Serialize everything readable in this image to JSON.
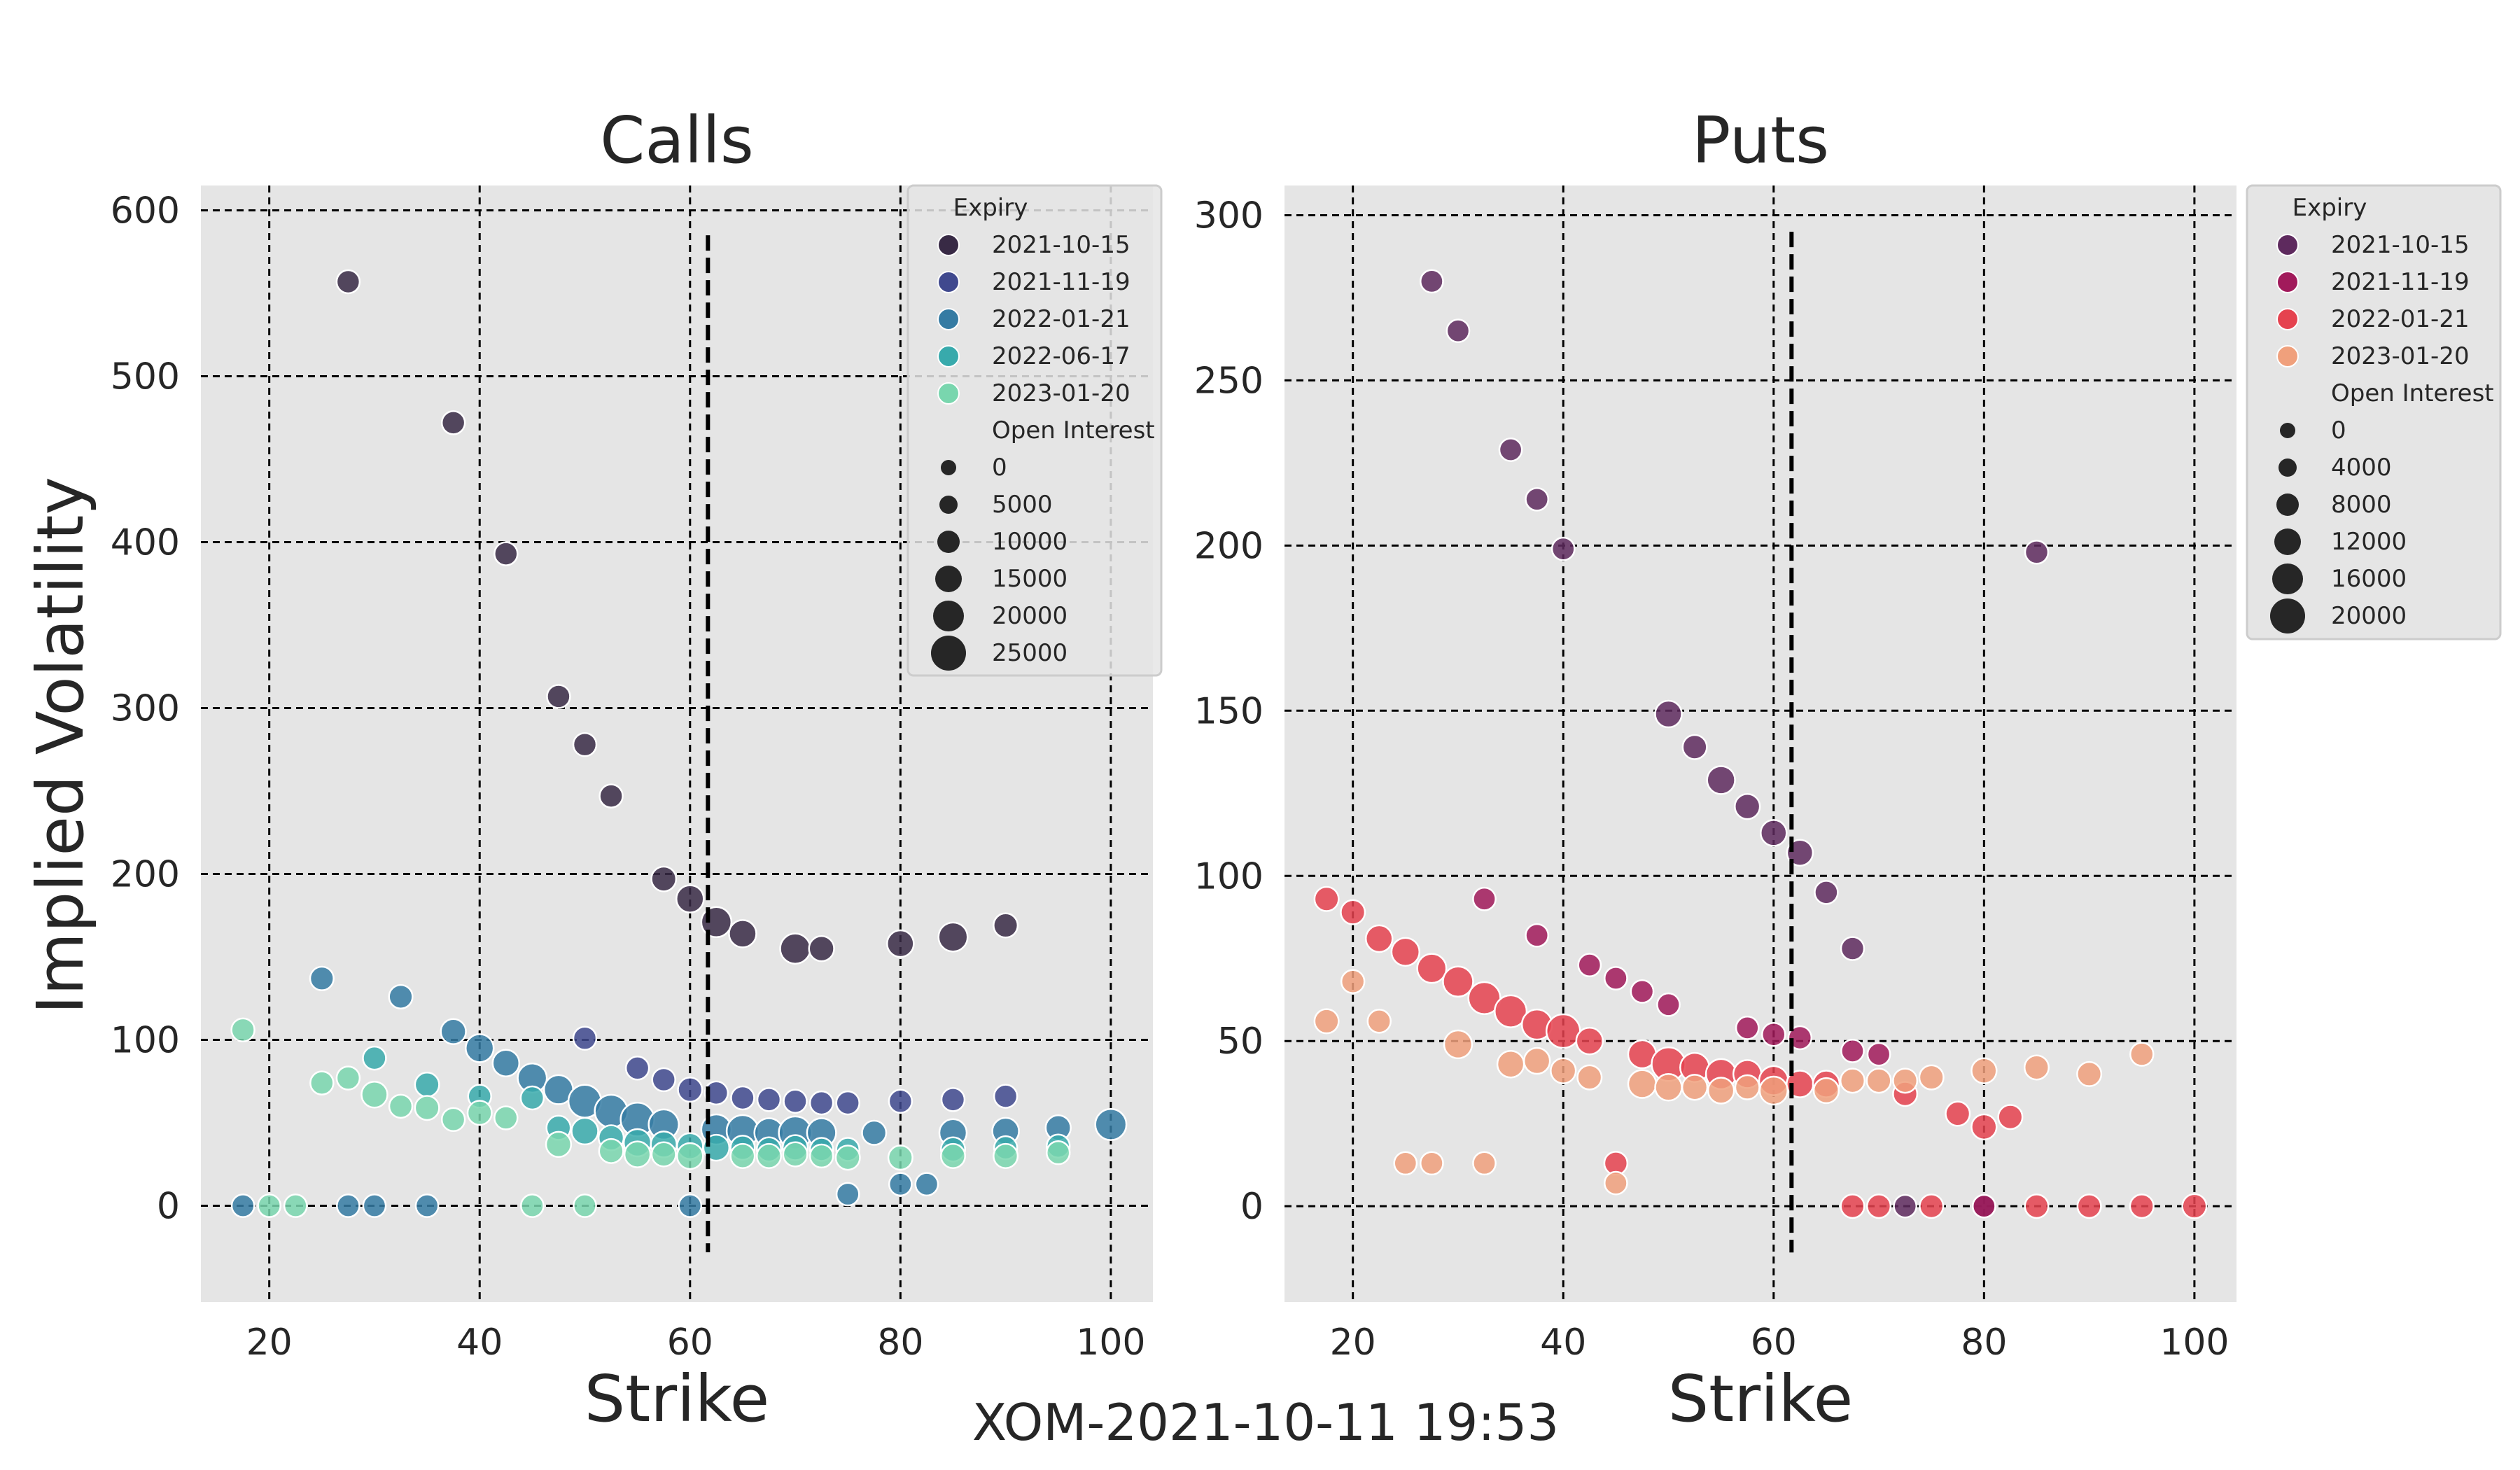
{
  "suptitle": "XOM-2021-10-11 19:53",
  "chart_data": [
    {
      "type": "scatter",
      "title": "Calls",
      "xlabel": "Strike",
      "ylabel": "Implied Volatility",
      "xlim": [
        13.5,
        104
      ],
      "ylim": [
        -58,
        615
      ],
      "xticks": [
        20,
        40,
        60,
        80,
        100
      ],
      "yticks": [
        0,
        100,
        200,
        300,
        400,
        500,
        600
      ],
      "grid": true,
      "legend_position": "upper-right",
      "spot_line": {
        "x": 61.7,
        "y_range": [
          -28,
          585
        ]
      },
      "legend_hue_title": "Expiry",
      "legend_size_title": "Open Interest",
      "size_legend_values": [
        0,
        5000,
        10000,
        15000,
        20000,
        25000
      ],
      "series": [
        {
          "name": "2021-10-15",
          "color": "#382a45",
          "points": [
            [
              27.5,
              557,
              1000
            ],
            [
              37.5,
              472,
              1000
            ],
            [
              42.5,
              393,
              1000
            ],
            [
              47.5,
              307,
              1000
            ],
            [
              50,
              278,
              1000
            ],
            [
              52.5,
              247,
              1000
            ],
            [
              57.5,
              197,
              1800
            ],
            [
              60,
              185,
              3500
            ],
            [
              62.5,
              171,
              6000
            ],
            [
              65,
              164,
              3500
            ],
            [
              70,
              155,
              6000
            ],
            [
              72.5,
              155,
              2000
            ],
            [
              80,
              158,
              3000
            ],
            [
              85,
              162,
              5000
            ],
            [
              90,
              169,
              1500
            ]
          ]
        },
        {
          "name": "2021-11-19",
          "color": "#40498e",
          "points": [
            [
              50,
              101,
              1000
            ],
            [
              55,
              83,
              1000
            ],
            [
              57.5,
              76,
              1000
            ],
            [
              60,
              70,
              1500
            ],
            [
              62.5,
              68,
              1000
            ],
            [
              65,
              65,
              1000
            ],
            [
              67.5,
              64,
              1000
            ],
            [
              70,
              63,
              1000
            ],
            [
              72.5,
              62,
              1000
            ],
            [
              75,
              62,
              1000
            ],
            [
              80,
              63,
              1000
            ],
            [
              85,
              64,
              1000
            ],
            [
              90,
              66,
              1000
            ]
          ]
        },
        {
          "name": "2022-01-21",
          "color": "#357ba3",
          "points": [
            [
              17.5,
              0,
              800
            ],
            [
              25,
              137,
              1200
            ],
            [
              27.5,
              0,
              800
            ],
            [
              30,
              0,
              800
            ],
            [
              32.5,
              126,
              1200
            ],
            [
              35,
              0,
              800
            ],
            [
              37.5,
              105,
              2000
            ],
            [
              40,
              95,
              4000
            ],
            [
              42.5,
              86,
              3000
            ],
            [
              45,
              77,
              5000
            ],
            [
              47.5,
              70,
              5000
            ],
            [
              50,
              63,
              9000
            ],
            [
              52.5,
              57,
              9000
            ],
            [
              55,
              52,
              10000
            ],
            [
              57.5,
              49,
              6000
            ],
            [
              60,
              0,
              800
            ],
            [
              62.5,
              46,
              6000
            ],
            [
              65,
              45,
              8000
            ],
            [
              67.5,
              44,
              5000
            ],
            [
              70,
              44,
              9000
            ],
            [
              72.5,
              44,
              5000
            ],
            [
              75,
              7,
              800
            ],
            [
              77.5,
              44,
              1500
            ],
            [
              80,
              13,
              800
            ],
            [
              82.5,
              13,
              800
            ],
            [
              85,
              44,
              3500
            ],
            [
              90,
              45,
              3000
            ],
            [
              95,
              47,
              2000
            ],
            [
              100,
              49,
              7000
            ]
          ]
        },
        {
          "name": "2022-06-17",
          "color": "#38aaac",
          "points": [
            [
              30,
              89,
              1000
            ],
            [
              35,
              73,
              1500
            ],
            [
              40,
              66,
              1000
            ],
            [
              45,
              65,
              1000
            ],
            [
              47.5,
              47,
              1500
            ],
            [
              50,
              45,
              3000
            ],
            [
              52.5,
              41,
              2000
            ],
            [
              55,
              38,
              3500
            ],
            [
              57.5,
              37,
              2500
            ],
            [
              60,
              36,
              2500
            ],
            [
              62.5,
              35,
              2500
            ],
            [
              65,
              35,
              1500
            ],
            [
              67.5,
              34,
              1500
            ],
            [
              70,
              35,
              2000
            ],
            [
              72.5,
              34,
              1000
            ],
            [
              75,
              34,
              1000
            ],
            [
              85,
              34,
              1500
            ],
            [
              90,
              35,
              1000
            ],
            [
              95,
              36,
              1000
            ]
          ]
        },
        {
          "name": "2023-01-20",
          "color": "#79d6ae",
          "points": [
            [
              17.5,
              106,
              1000
            ],
            [
              20,
              0,
              800
            ],
            [
              22.5,
              0,
              800
            ],
            [
              25,
              74,
              1000
            ],
            [
              27.5,
              77,
              1000
            ],
            [
              30,
              67,
              2500
            ],
            [
              32.5,
              60,
              1000
            ],
            [
              35,
              59,
              1500
            ],
            [
              37.5,
              52,
              1000
            ],
            [
              40,
              56,
              1500
            ],
            [
              42.5,
              53,
              1000
            ],
            [
              45,
              0,
              800
            ],
            [
              47.5,
              37,
              2000
            ],
            [
              50,
              0,
              800
            ],
            [
              52.5,
              33,
              1500
            ],
            [
              55,
              31,
              2500
            ],
            [
              57.5,
              31,
              1500
            ],
            [
              60,
              30,
              2500
            ],
            [
              65,
              30,
              1500
            ],
            [
              67.5,
              30,
              1500
            ],
            [
              70,
              31,
              1500
            ],
            [
              72.5,
              30,
              1000
            ],
            [
              75,
              29,
              1500
            ],
            [
              80,
              29,
              1500
            ],
            [
              85,
              30,
              1500
            ],
            [
              90,
              30,
              1500
            ],
            [
              95,
              32,
              1000
            ]
          ]
        }
      ]
    },
    {
      "type": "scatter",
      "title": "Puts",
      "xlabel": "Strike",
      "ylabel": "",
      "xlim": [
        13.5,
        104
      ],
      "ylim": [
        -29,
        309
      ],
      "xticks": [
        20,
        40,
        60,
        80,
        100
      ],
      "yticks": [
        0,
        50,
        100,
        150,
        200,
        250,
        300
      ],
      "grid": true,
      "legend_position": "outside-right",
      "spot_line": {
        "x": 61.7,
        "y_range": [
          -14,
          295
        ]
      },
      "legend_hue_title": "Expiry",
      "legend_size_title": "Open Interest",
      "size_legend_values": [
        0,
        4000,
        8000,
        12000,
        16000,
        20000
      ],
      "series": [
        {
          "name": "2021-10-15",
          "color": "#5e2a5e",
          "points": [
            [
              27.5,
              280,
              800
            ],
            [
              30,
              265,
              800
            ],
            [
              35,
              229,
              800
            ],
            [
              37.5,
              214,
              800
            ],
            [
              40,
              199,
              800
            ],
            [
              50,
              149,
              3000
            ],
            [
              52.5,
              139,
              1500
            ],
            [
              55,
              129,
              4000
            ],
            [
              57.5,
              121,
              2000
            ],
            [
              60,
              113,
              2500
            ],
            [
              62.5,
              107,
              2500
            ],
            [
              65,
              95,
              1000
            ],
            [
              67.5,
              78,
              1000
            ],
            [
              72.5,
              0,
              800
            ],
            [
              80,
              0,
              800
            ],
            [
              85,
              198,
              1000
            ]
          ]
        },
        {
          "name": "2021-11-19",
          "color": "#a11a5b",
          "points": [
            [
              32.5,
              93,
              800
            ],
            [
              37.5,
              82,
              800
            ],
            [
              42.5,
              73,
              800
            ],
            [
              45,
              69,
              800
            ],
            [
              47.5,
              65,
              800
            ],
            [
              50,
              61,
              800
            ],
            [
              57.5,
              54,
              800
            ],
            [
              60,
              52,
              1000
            ],
            [
              62.5,
              51,
              1000
            ],
            [
              67.5,
              47,
              800
            ],
            [
              70,
              46,
              800
            ],
            [
              80,
              0,
              800
            ]
          ]
        },
        {
          "name": "2022-01-21",
          "color": "#e5424f",
          "points": [
            [
              17.5,
              93,
              1500
            ],
            [
              20,
              89,
              1500
            ],
            [
              22.5,
              81,
              3000
            ],
            [
              25,
              77,
              4000
            ],
            [
              27.5,
              72,
              5000
            ],
            [
              30,
              68,
              6000
            ],
            [
              32.5,
              63,
              8000
            ],
            [
              35,
              59,
              8000
            ],
            [
              37.5,
              55,
              6000
            ],
            [
              40,
              53,
              10000
            ],
            [
              42.5,
              50,
              3000
            ],
            [
              45,
              13,
              1000
            ],
            [
              47.5,
              46,
              4000
            ],
            [
              50,
              43,
              10000
            ],
            [
              52.5,
              42,
              5000
            ],
            [
              55,
              40,
              6000
            ],
            [
              57.5,
              40,
              4000
            ],
            [
              60,
              38,
              5000
            ],
            [
              62.5,
              37,
              3000
            ],
            [
              65,
              37,
              3000
            ],
            [
              67.5,
              0,
              1200
            ],
            [
              70,
              0,
              1200
            ],
            [
              72.5,
              34,
              1500
            ],
            [
              75,
              0,
              1200
            ],
            [
              77.5,
              28,
              1500
            ],
            [
              80,
              24,
              2000
            ],
            [
              82.5,
              27,
              1500
            ],
            [
              85,
              0,
              1200
            ],
            [
              90,
              0,
              1200
            ],
            [
              95,
              0,
              1200
            ],
            [
              100,
              0,
              1500
            ]
          ]
        },
        {
          "name": "2023-01-20",
          "color": "#f0a07c",
          "points": [
            [
              17.5,
              56,
              1500
            ],
            [
              20,
              68,
              1000
            ],
            [
              22.5,
              56,
              1000
            ],
            [
              25,
              13,
              800
            ],
            [
              27.5,
              13,
              800
            ],
            [
              30,
              49,
              4000
            ],
            [
              32.5,
              13,
              800
            ],
            [
              35,
              43,
              3000
            ],
            [
              37.5,
              44,
              2500
            ],
            [
              40,
              41,
              2000
            ],
            [
              42.5,
              39,
              1500
            ],
            [
              45,
              7,
              800
            ],
            [
              47.5,
              37,
              4000
            ],
            [
              50,
              36,
              3000
            ],
            [
              52.5,
              36,
              2000
            ],
            [
              55,
              35,
              2500
            ],
            [
              57.5,
              36,
              1500
            ],
            [
              60,
              35,
              4000
            ],
            [
              65,
              35,
              2000
            ],
            [
              67.5,
              38,
              1500
            ],
            [
              70,
              38,
              1500
            ],
            [
              72.5,
              38,
              1500
            ],
            [
              75,
              39,
              1500
            ],
            [
              80,
              41,
              2000
            ],
            [
              85,
              42,
              1500
            ],
            [
              90,
              40,
              1500
            ],
            [
              95,
              46,
              1000
            ]
          ]
        }
      ]
    }
  ]
}
